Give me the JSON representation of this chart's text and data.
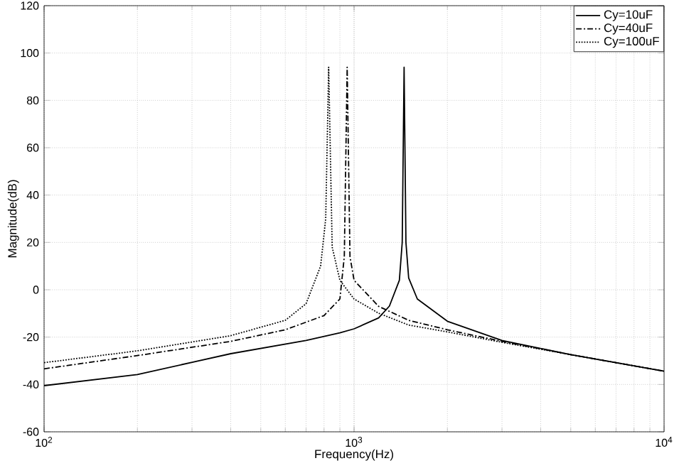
{
  "chart_data": {
    "type": "line",
    "xlabel": "Frequency(Hz)",
    "ylabel": "Magnitude(dB)",
    "log": "x",
    "grid": true,
    "legend": "top right",
    "marker": "none",
    "xlim": [
      100,
      10000
    ],
    "ylim": [
      -60,
      120
    ],
    "xticks": [
      {
        "value": 100,
        "label": "10$^{2}$"
      },
      {
        "value": 1000,
        "label": "10$^{3}$"
      },
      {
        "value": 10000,
        "label": "10$^{4}$"
      }
    ],
    "yticks": [
      -60,
      -40,
      -20,
      0,
      20,
      40,
      60,
      80,
      100,
      120
    ],
    "series": [
      {
        "name": "Cy=10uF",
        "color": "#000000",
        "line_style": "solid",
        "x": [
          100,
          200,
          400,
          700,
          900,
          1000,
          1200,
          1300,
          1400,
          1430,
          1450,
          1470,
          1500,
          1600,
          2000,
          3000,
          5000,
          10000
        ],
        "values": [
          -40.5,
          -35.8,
          -27,
          -21.4,
          -18.2,
          -16.5,
          -11.9,
          -6.9,
          4,
          20,
          94,
          20,
          5,
          -3.9,
          -13.3,
          -21.4,
          -27.4,
          -34.4
        ]
      },
      {
        "name": "Cy=40uF",
        "color": "#000000",
        "line_style": "dashdot",
        "x": [
          100,
          200,
          400,
          600,
          800,
          900,
          930,
          950,
          970,
          1000,
          1200,
          1500,
          2000,
          3000,
          5000,
          10000
        ],
        "values": [
          -33.4,
          -27.8,
          -21.8,
          -16.9,
          -10.9,
          -3.9,
          14,
          94,
          14,
          4,
          -7,
          -12.9,
          -16.9,
          -21.8,
          -27.4,
          -34.4
        ]
      },
      {
        "name": "Cy=100uF",
        "color": "#000000",
        "line_style": "dotted",
        "x": [
          100,
          200,
          400,
          600,
          700,
          780,
          810,
          828,
          850,
          900,
          1000,
          1200,
          1500,
          2000,
          3000,
          5000,
          10000
        ],
        "values": [
          -30.8,
          -25.8,
          -19.4,
          -12.9,
          -5.9,
          10,
          30,
          94,
          18,
          4,
          -3.9,
          -9.9,
          -14.9,
          -17.8,
          -22.2,
          -27.4,
          -34.4
        ]
      }
    ]
  }
}
